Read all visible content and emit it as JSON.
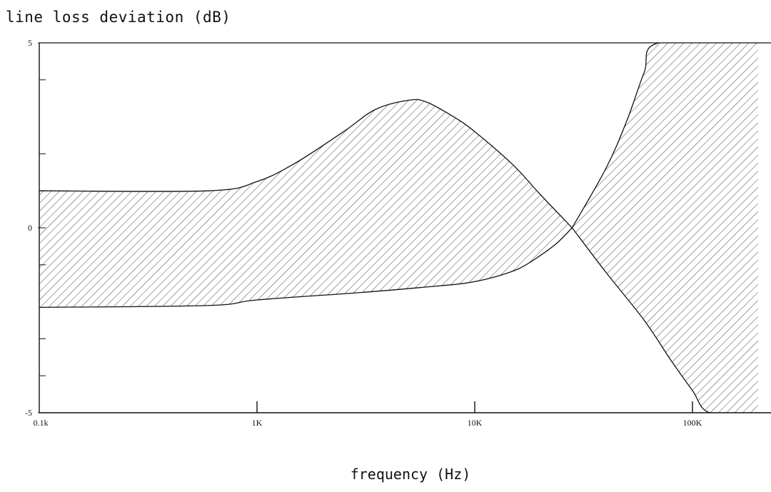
{
  "chart_data": {
    "type": "area",
    "title": "",
    "ylabel": "line loss deviation (dB)",
    "xlabel": "frequency (Hz)",
    "x_scale": "log",
    "xlim": [
      100,
      200000
    ],
    "ylim": [
      -5,
      5
    ],
    "x_ticks": [
      {
        "value": 100,
        "label": "0.1k"
      },
      {
        "value": 1000,
        "label": "1K"
      },
      {
        "value": 10000,
        "label": "10K"
      },
      {
        "value": 100000,
        "label": "100K"
      }
    ],
    "y_ticks": [
      {
        "value": 5,
        "label": "5"
      },
      {
        "value": 0,
        "label": "0"
      },
      {
        "value": -5,
        "label": "-5"
      }
    ],
    "y_minor_ticks": [
      4,
      2,
      1,
      -1,
      -3,
      -4
    ],
    "grid": false,
    "regions": [
      {
        "upper": {
          "x": [
            100,
            600,
            1000,
            1500,
            2500,
            3500,
            5000,
            6000,
            8000,
            10000,
            15000,
            20000,
            28000
          ],
          "y": [
            1.0,
            1.0,
            1.25,
            1.75,
            2.6,
            3.2,
            3.45,
            3.4,
            3.0,
            2.6,
            1.7,
            0.9,
            0.0
          ]
        },
        "lower": {
          "x": [
            100,
            600,
            1000,
            3000,
            6000,
            9000,
            12000,
            16000,
            20000,
            24000,
            28000
          ],
          "y": [
            -2.15,
            -2.1,
            -1.95,
            -1.75,
            -1.6,
            -1.5,
            -1.35,
            -1.1,
            -0.75,
            -0.4,
            0.0
          ]
        }
      },
      {
        "upper": {
          "x": [
            28000,
            40000,
            50000,
            60000,
            70000,
            200000
          ],
          "y": [
            0.0,
            1.6,
            2.9,
            4.2,
            5.0,
            5.0
          ]
        },
        "lower": {
          "x": [
            28000,
            40000,
            60000,
            80000,
            100000,
            120000,
            200000
          ],
          "y": [
            0.0,
            -1.2,
            -2.5,
            -3.6,
            -4.4,
            -5.0,
            -5.0
          ]
        }
      }
    ]
  }
}
